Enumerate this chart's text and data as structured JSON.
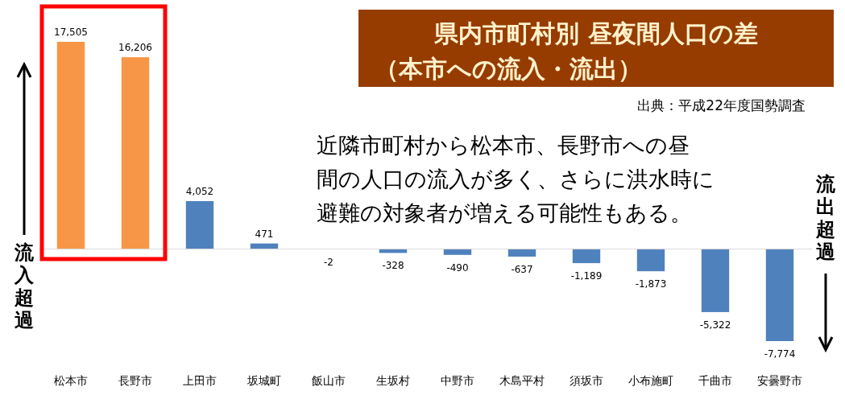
{
  "chart_data": {
    "type": "bar",
    "title": "県内市町村別 昼夜間人口の差",
    "subtitle": "（本市への流入・流出）",
    "categories": [
      "松本市",
      "長野市",
      "上田市",
      "坂城町",
      "飯山市",
      "生坂村",
      "中野市",
      "木島平村",
      "須坂市",
      "小布施町",
      "千曲市",
      "安曇野市"
    ],
    "values": [
      17505,
      16206,
      4052,
      471,
      -2,
      -328,
      -490,
      -637,
      -1189,
      -1873,
      -5322,
      -7774
    ],
    "value_labels": [
      "17,505",
      "16,206",
      "4,052",
      "471",
      "-2",
      "-328",
      "-490",
      "-637",
      "-1,189",
      "-1,873",
      "-5,322",
      "-7,774"
    ],
    "colors": [
      "#f79646",
      "#f79646",
      "#4f81bd",
      "#4f81bd",
      "#4f81bd",
      "#4f81bd",
      "#4f81bd",
      "#4f81bd",
      "#4f81bd",
      "#4f81bd",
      "#4f81bd",
      "#4f81bd"
    ],
    "relative": false,
    "annotations": [
      "出典：平成22年度国勢調査",
      "近隣市町村から松本市、長野市への昼",
      "間の人口の流入が多く、さらに洪水時に",
      "避難の対象者が増える可能性もある。",
      "流入超過",
      "流出超過"
    ]
  }
}
